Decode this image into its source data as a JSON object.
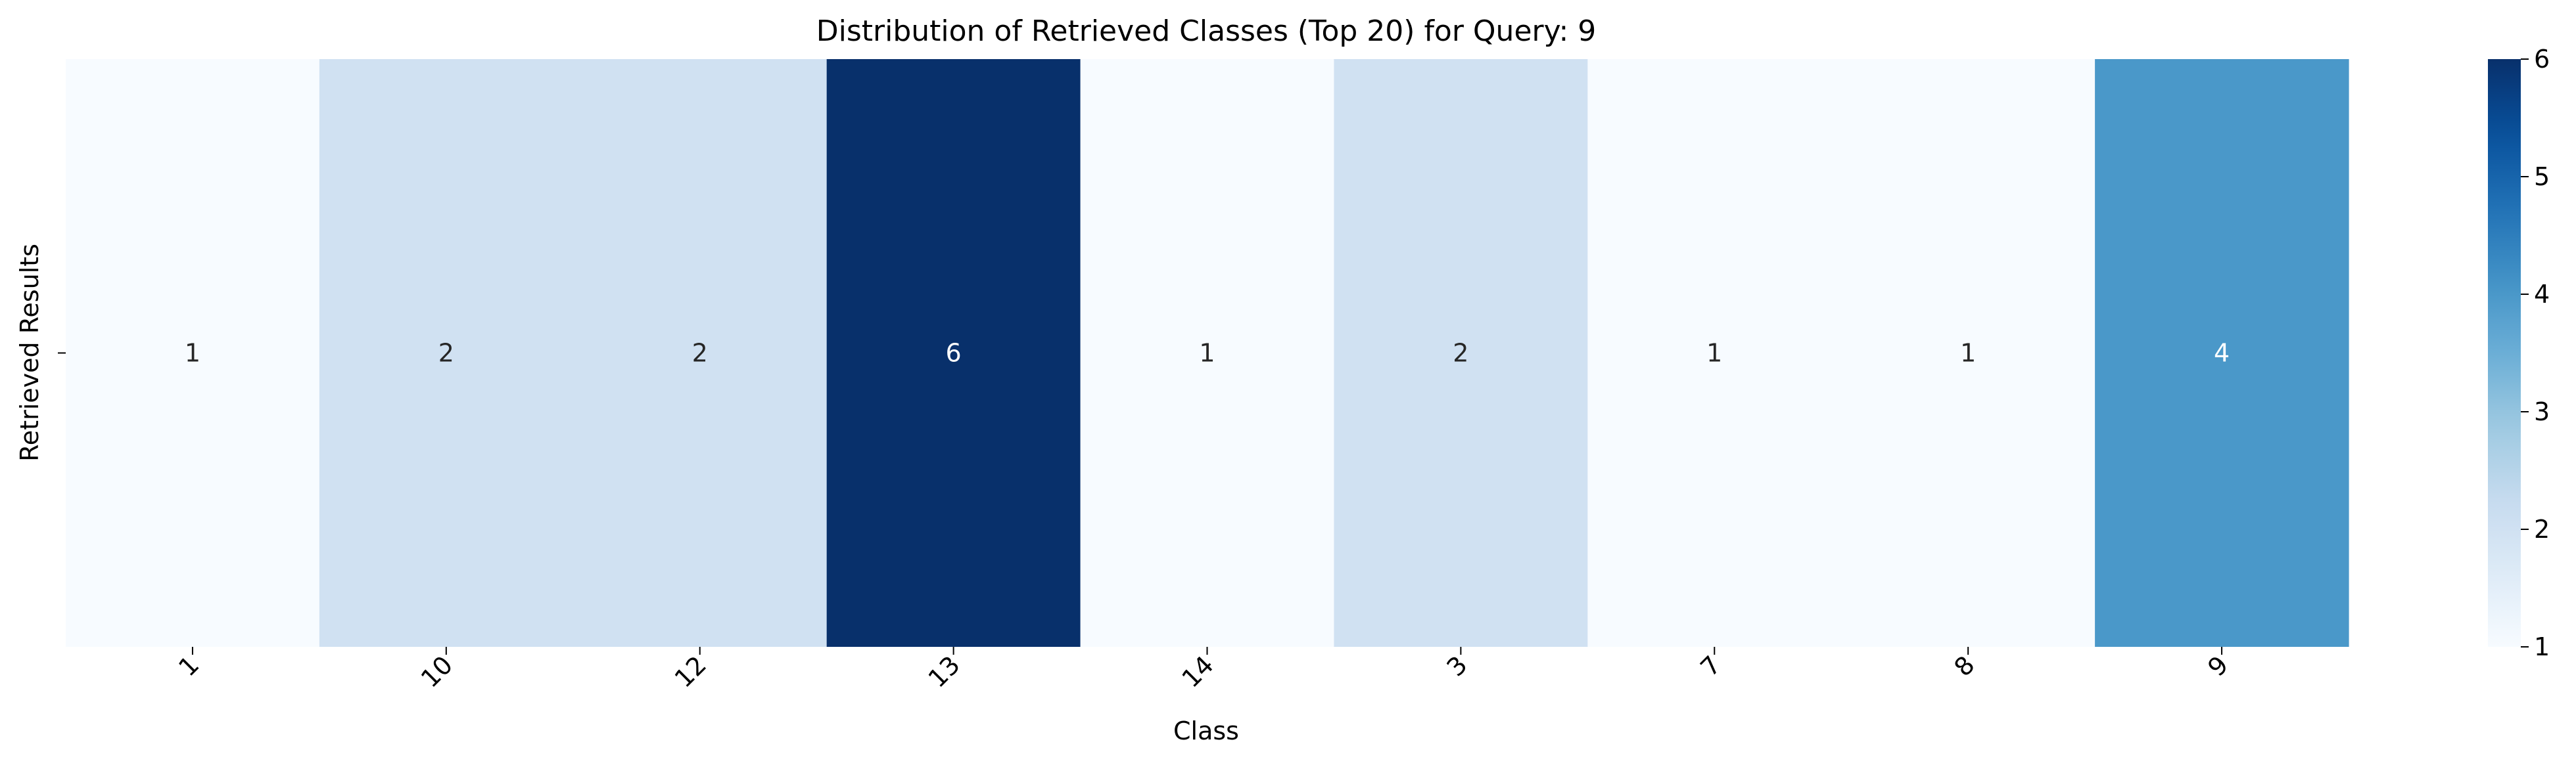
{
  "chart_data": {
    "type": "heatmap",
    "title": "Distribution of Retrieved Classes (Top 20) for Query: 9",
    "xlabel": "Class",
    "ylabel": "Retrieved Results",
    "x_categories": [
      "1",
      "10",
      "12",
      "13",
      "14",
      "3",
      "7",
      "8",
      "9"
    ],
    "y_categories": [
      ""
    ],
    "values": [
      [
        1,
        2,
        2,
        6,
        1,
        2,
        1,
        1,
        4
      ]
    ],
    "colormap": "Blues",
    "color_range": [
      1,
      6
    ],
    "colorbar_ticks": [
      "1",
      "2",
      "3",
      "4",
      "5",
      "6"
    ],
    "annotated": true
  }
}
